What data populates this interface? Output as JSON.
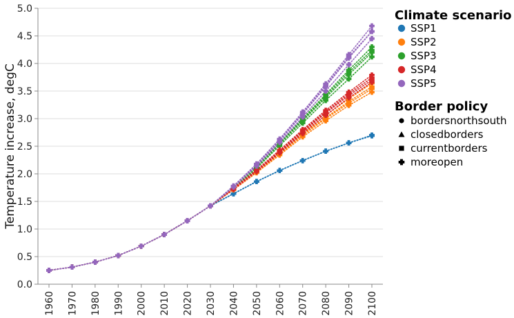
{
  "chart_data": {
    "type": "line",
    "xlabel": "",
    "ylabel": "Temperature increase, degC",
    "x": [
      1960,
      1970,
      1980,
      1990,
      2000,
      2010,
      2020,
      2030,
      2040,
      2050,
      2060,
      2070,
      2080,
      2090,
      2100
    ],
    "x_tick_labels": [
      "1960",
      "1970",
      "1980",
      "1990",
      "2000",
      "2010",
      "2020",
      "2030",
      "2040",
      "2050",
      "2060",
      "2070",
      "2080",
      "2090",
      "2100"
    ],
    "y_tick_labels": [
      "0.0",
      "0.5",
      "1.0",
      "1.5",
      "2.0",
      "2.5",
      "3.0",
      "3.5",
      "4.0",
      "4.5",
      "5.0"
    ],
    "ylim": [
      0,
      5
    ],
    "grid": "horizontal",
    "line_style": "dotted",
    "legend_placement": "right",
    "color_legend": {
      "title": "Climate scenario",
      "entries": [
        {
          "label": "SSP1",
          "color": "#1f77b4"
        },
        {
          "label": "SSP2",
          "color": "#ff7f0e"
        },
        {
          "label": "SSP3",
          "color": "#2ca02c"
        },
        {
          "label": "SSP4",
          "color": "#d62728"
        },
        {
          "label": "SSP5",
          "color": "#9467bd"
        }
      ]
    },
    "shape_legend": {
      "title": "Border policy",
      "entries": [
        {
          "label": "bordersnorthsouth",
          "shape": "circle"
        },
        {
          "label": "closedborders",
          "shape": "triangle"
        },
        {
          "label": "currentborders",
          "shape": "square"
        },
        {
          "label": "moreopen",
          "shape": "cross"
        }
      ]
    },
    "historical": [
      0.25,
      0.31,
      0.4,
      0.52,
      0.69,
      0.9,
      1.15,
      1.42
    ],
    "series": [
      {
        "scenario": "SSP1",
        "policy": "bordersnorthsouth",
        "projection": [
          1.64,
          1.86,
          2.06,
          2.24,
          2.41,
          2.56,
          2.7
        ]
      },
      {
        "scenario": "SSP1",
        "policy": "closedborders",
        "projection": [
          1.64,
          1.86,
          2.06,
          2.24,
          2.41,
          2.56,
          2.69
        ]
      },
      {
        "scenario": "SSP1",
        "policy": "currentborders",
        "projection": [
          1.64,
          1.86,
          2.06,
          2.24,
          2.41,
          2.56,
          2.69
        ]
      },
      {
        "scenario": "SSP1",
        "policy": "moreopen",
        "projection": [
          1.64,
          1.86,
          2.06,
          2.24,
          2.41,
          2.56,
          2.7
        ]
      },
      {
        "scenario": "SSP2",
        "policy": "bordersnorthsouth",
        "projection": [
          1.72,
          2.03,
          2.36,
          2.7,
          3.0,
          3.28,
          3.54
        ]
      },
      {
        "scenario": "SSP2",
        "policy": "closedborders",
        "projection": [
          1.71,
          2.02,
          2.34,
          2.67,
          2.96,
          3.24,
          3.48
        ]
      },
      {
        "scenario": "SSP2",
        "policy": "currentborders",
        "projection": [
          1.72,
          2.04,
          2.37,
          2.72,
          3.02,
          3.31,
          3.58
        ]
      },
      {
        "scenario": "SSP2",
        "policy": "moreopen",
        "projection": [
          1.73,
          2.05,
          2.39,
          2.74,
          3.06,
          3.36,
          3.64
        ]
      },
      {
        "scenario": "SSP3",
        "policy": "bordersnorthsouth",
        "projection": [
          1.75,
          2.12,
          2.54,
          2.96,
          3.38,
          3.8,
          4.2
        ]
      },
      {
        "scenario": "SSP3",
        "policy": "closedborders",
        "projection": [
          1.74,
          2.1,
          2.51,
          2.92,
          3.33,
          3.72,
          4.12
        ]
      },
      {
        "scenario": "SSP3",
        "policy": "currentborders",
        "projection": [
          1.75,
          2.13,
          2.55,
          2.98,
          3.41,
          3.84,
          4.24
        ]
      },
      {
        "scenario": "SSP3",
        "policy": "moreopen",
        "projection": [
          1.76,
          2.14,
          2.57,
          3.0,
          3.44,
          3.88,
          4.3
        ]
      },
      {
        "scenario": "SSP4",
        "policy": "bordersnorthsouth",
        "projection": [
          1.73,
          2.06,
          2.41,
          2.78,
          3.12,
          3.45,
          3.74
        ]
      },
      {
        "scenario": "SSP4",
        "policy": "closedborders",
        "projection": [
          1.72,
          2.04,
          2.38,
          2.73,
          3.06,
          3.38,
          3.66
        ]
      },
      {
        "scenario": "SSP4",
        "policy": "currentborders",
        "projection": [
          1.73,
          2.05,
          2.4,
          2.76,
          3.1,
          3.42,
          3.7
        ]
      },
      {
        "scenario": "SSP4",
        "policy": "moreopen",
        "projection": [
          1.74,
          2.07,
          2.43,
          2.8,
          3.15,
          3.48,
          3.79
        ]
      },
      {
        "scenario": "SSP5",
        "policy": "bordersnorthsouth",
        "projection": [
          1.77,
          2.16,
          2.6,
          3.08,
          3.58,
          4.1,
          4.58
        ]
      },
      {
        "scenario": "SSP5",
        "policy": "closedborders",
        "projection": [
          1.76,
          2.14,
          2.57,
          3.03,
          3.5,
          3.98,
          4.45
        ]
      },
      {
        "scenario": "SSP5",
        "policy": "currentborders",
        "projection": [
          1.77,
          2.17,
          2.61,
          3.1,
          3.6,
          4.12,
          4.58
        ]
      },
      {
        "scenario": "SSP5",
        "policy": "moreopen",
        "projection": [
          1.78,
          2.18,
          2.63,
          3.12,
          3.63,
          4.16,
          4.68
        ]
      }
    ]
  }
}
